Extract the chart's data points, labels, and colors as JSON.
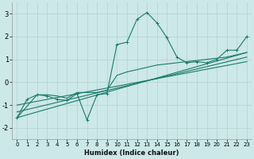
{
  "xlabel": "Humidex (Indice chaleur)",
  "xlim": [
    -0.5,
    23.5
  ],
  "ylim": [
    -2.5,
    3.5
  ],
  "xticks": [
    0,
    1,
    2,
    3,
    4,
    5,
    6,
    7,
    8,
    9,
    10,
    11,
    12,
    13,
    14,
    15,
    16,
    17,
    18,
    19,
    20,
    21,
    22,
    23
  ],
  "yticks": [
    -2,
    -1,
    0,
    1,
    2,
    3
  ],
  "background_color": "#cce8e8",
  "grid_color": "#b8d4d4",
  "line_color": "#1a7a6a",
  "line1_x": [
    0,
    1,
    2,
    3,
    4,
    5,
    6,
    7,
    8,
    9,
    10,
    11,
    12,
    13,
    14,
    15,
    16,
    17,
    18,
    19,
    20,
    21,
    22,
    23
  ],
  "line1_y": [
    -1.55,
    -0.75,
    -0.55,
    -0.6,
    -0.75,
    -0.8,
    -0.5,
    -1.65,
    -0.55,
    -0.5,
    1.65,
    1.75,
    2.75,
    3.05,
    2.6,
    1.95,
    1.1,
    0.85,
    0.9,
    0.85,
    1.0,
    1.4,
    1.4,
    2.0
  ],
  "line2_x": [
    0,
    2,
    3,
    4,
    5,
    6,
    7,
    8,
    9,
    10,
    11,
    12,
    13,
    14,
    15,
    16,
    17,
    18,
    19,
    20,
    21,
    22,
    23
  ],
  "line2_y": [
    -1.55,
    -0.55,
    -0.55,
    -0.6,
    -0.7,
    -0.45,
    -0.45,
    -0.45,
    -0.35,
    0.3,
    0.45,
    0.55,
    0.65,
    0.75,
    0.8,
    0.85,
    0.9,
    0.95,
    1.0,
    1.05,
    1.1,
    1.2,
    1.3
  ],
  "line3_x": [
    0,
    23
  ],
  "line3_y": [
    -1.55,
    1.3
  ],
  "line4_x": [
    0,
    23
  ],
  "line4_y": [
    -1.3,
    1.1
  ],
  "line5_x": [
    0,
    23
  ],
  "line5_y": [
    -1.0,
    0.9
  ]
}
